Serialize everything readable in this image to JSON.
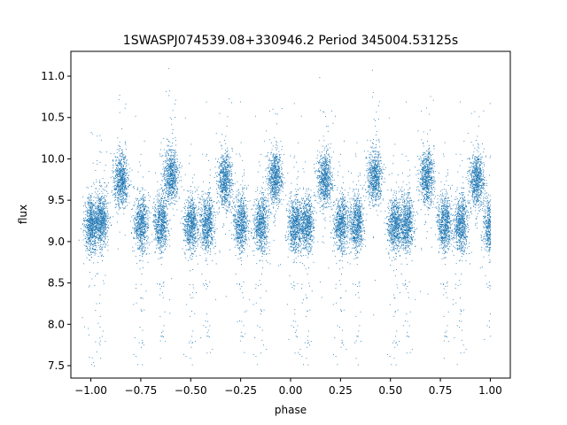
{
  "chart_data": {
    "type": "scatter",
    "title": "1SWASPJ074539.08+330946.2 Period 345004.53125s",
    "xlabel": "phase",
    "ylabel": "flux",
    "xlim": [
      -1.1,
      1.1
    ],
    "ylim": [
      7.35,
      11.3
    ],
    "xticks": [
      -1.0,
      -0.75,
      -0.5,
      -0.25,
      0.0,
      0.25,
      0.5,
      0.75,
      1.0
    ],
    "xtick_labels": [
      "−1.00",
      "−0.75",
      "−0.50",
      "−0.25",
      "0.00",
      "0.25",
      "0.50",
      "0.75",
      "1.00"
    ],
    "yticks": [
      7.5,
      8.0,
      8.5,
      9.0,
      9.5,
      10.0,
      10.5,
      11.0
    ],
    "ytick_labels": [
      "7.5",
      "8.0",
      "8.5",
      "9.0",
      "9.5",
      "10.0",
      "10.5",
      "11.0"
    ],
    "grid": false,
    "marker_color": "#1f77b4",
    "clusters": [
      {
        "x": -1.0,
        "y": 9.2
      },
      {
        "x": -0.95,
        "y": 9.25
      },
      {
        "x": -0.85,
        "y": 9.75
      },
      {
        "x": -0.75,
        "y": 9.22
      },
      {
        "x": -0.65,
        "y": 9.22
      },
      {
        "x": -0.6,
        "y": 9.8
      },
      {
        "x": -0.5,
        "y": 9.2
      },
      {
        "x": -0.42,
        "y": 9.22
      },
      {
        "x": -0.33,
        "y": 9.75
      },
      {
        "x": -0.25,
        "y": 9.22
      },
      {
        "x": -0.15,
        "y": 9.22
      },
      {
        "x": -0.08,
        "y": 9.78
      },
      {
        "x": 0.02,
        "y": 9.2
      },
      {
        "x": 0.08,
        "y": 9.22
      },
      {
        "x": 0.17,
        "y": 9.75
      },
      {
        "x": 0.25,
        "y": 9.22
      },
      {
        "x": 0.33,
        "y": 9.22
      },
      {
        "x": 0.42,
        "y": 9.78
      },
      {
        "x": 0.52,
        "y": 9.2
      },
      {
        "x": 0.58,
        "y": 9.22
      },
      {
        "x": 0.68,
        "y": 9.78
      },
      {
        "x": 0.77,
        "y": 9.22
      },
      {
        "x": 0.85,
        "y": 9.22
      },
      {
        "x": 0.93,
        "y": 9.75
      },
      {
        "x": 1.0,
        "y": 9.2
      }
    ]
  }
}
